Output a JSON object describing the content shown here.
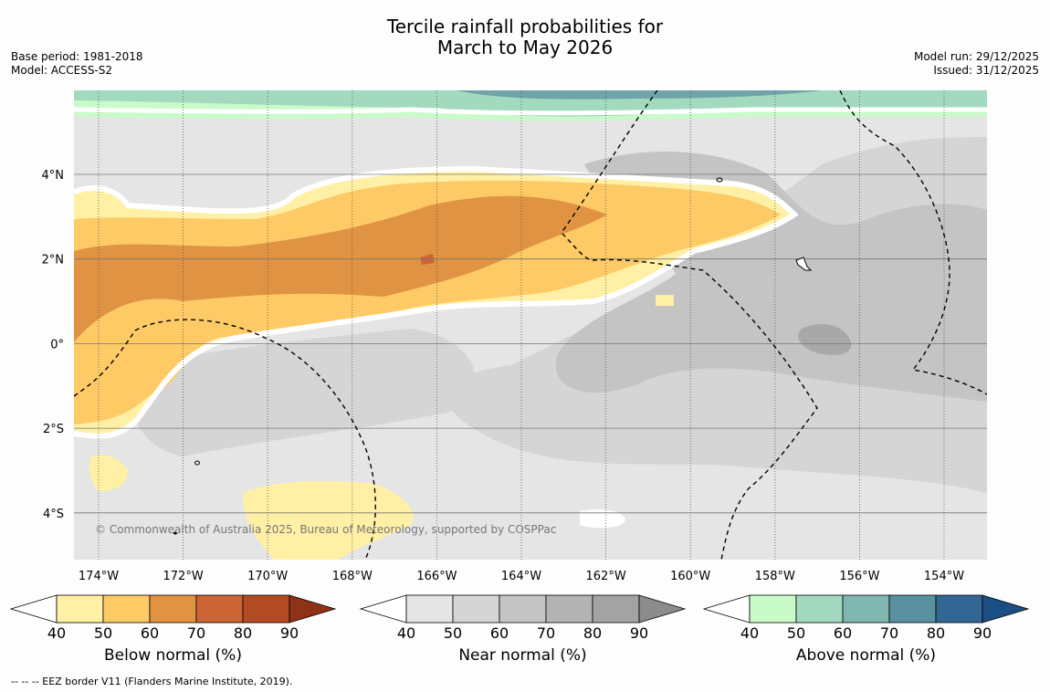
{
  "title": {
    "line1": "Tercile rainfall probabilities for",
    "line2": "March to May 2026"
  },
  "meta": {
    "base_period": "Base period: 1981-2018",
    "model": "Model: ACCESS-S2",
    "model_run": "Model run: 29/12/2025",
    "issued": "Issued: 31/12/2025"
  },
  "map": {
    "lon_labels": [
      "174°W",
      "172°W",
      "170°W",
      "168°W",
      "166°W",
      "164°W",
      "162°W",
      "160°W",
      "158°W",
      "156°W",
      "154°W"
    ],
    "lat_labels": [
      "4°N",
      "2°N",
      "0°",
      "2°S",
      "4°S"
    ],
    "credit": "© Commonwealth of Australia 2025, Bureau of Meteorology, supported by COSPPac"
  },
  "colorbars": [
    {
      "name": "below",
      "label": "Below normal (%)",
      "ticks": [
        "40",
        "50",
        "60",
        "70",
        "80",
        "90"
      ],
      "colors": [
        "#fff0a6",
        "#fdca66",
        "#e09343",
        "#cc6535",
        "#b24a24",
        "#8f3218"
      ]
    },
    {
      "name": "near",
      "label": "Near normal (%)",
      "ticks": [
        "40",
        "50",
        "60",
        "70",
        "80",
        "90"
      ],
      "colors": [
        "#e5e5e5",
        "#d5d5d5",
        "#c4c4c4",
        "#b3b3b3",
        "#a3a3a3",
        "#8c8c8c"
      ]
    },
    {
      "name": "above",
      "label": "Above normal (%)",
      "ticks": [
        "40",
        "50",
        "60",
        "70",
        "80",
        "90"
      ],
      "colors": [
        "#c9fbc9",
        "#a3d9bf",
        "#80b6b0",
        "#5a909f",
        "#326693",
        "#1a4e85"
      ]
    }
  ],
  "footnote": "--  --  -- EEZ border V11 (Flanders Marine Institute, 2019)."
}
